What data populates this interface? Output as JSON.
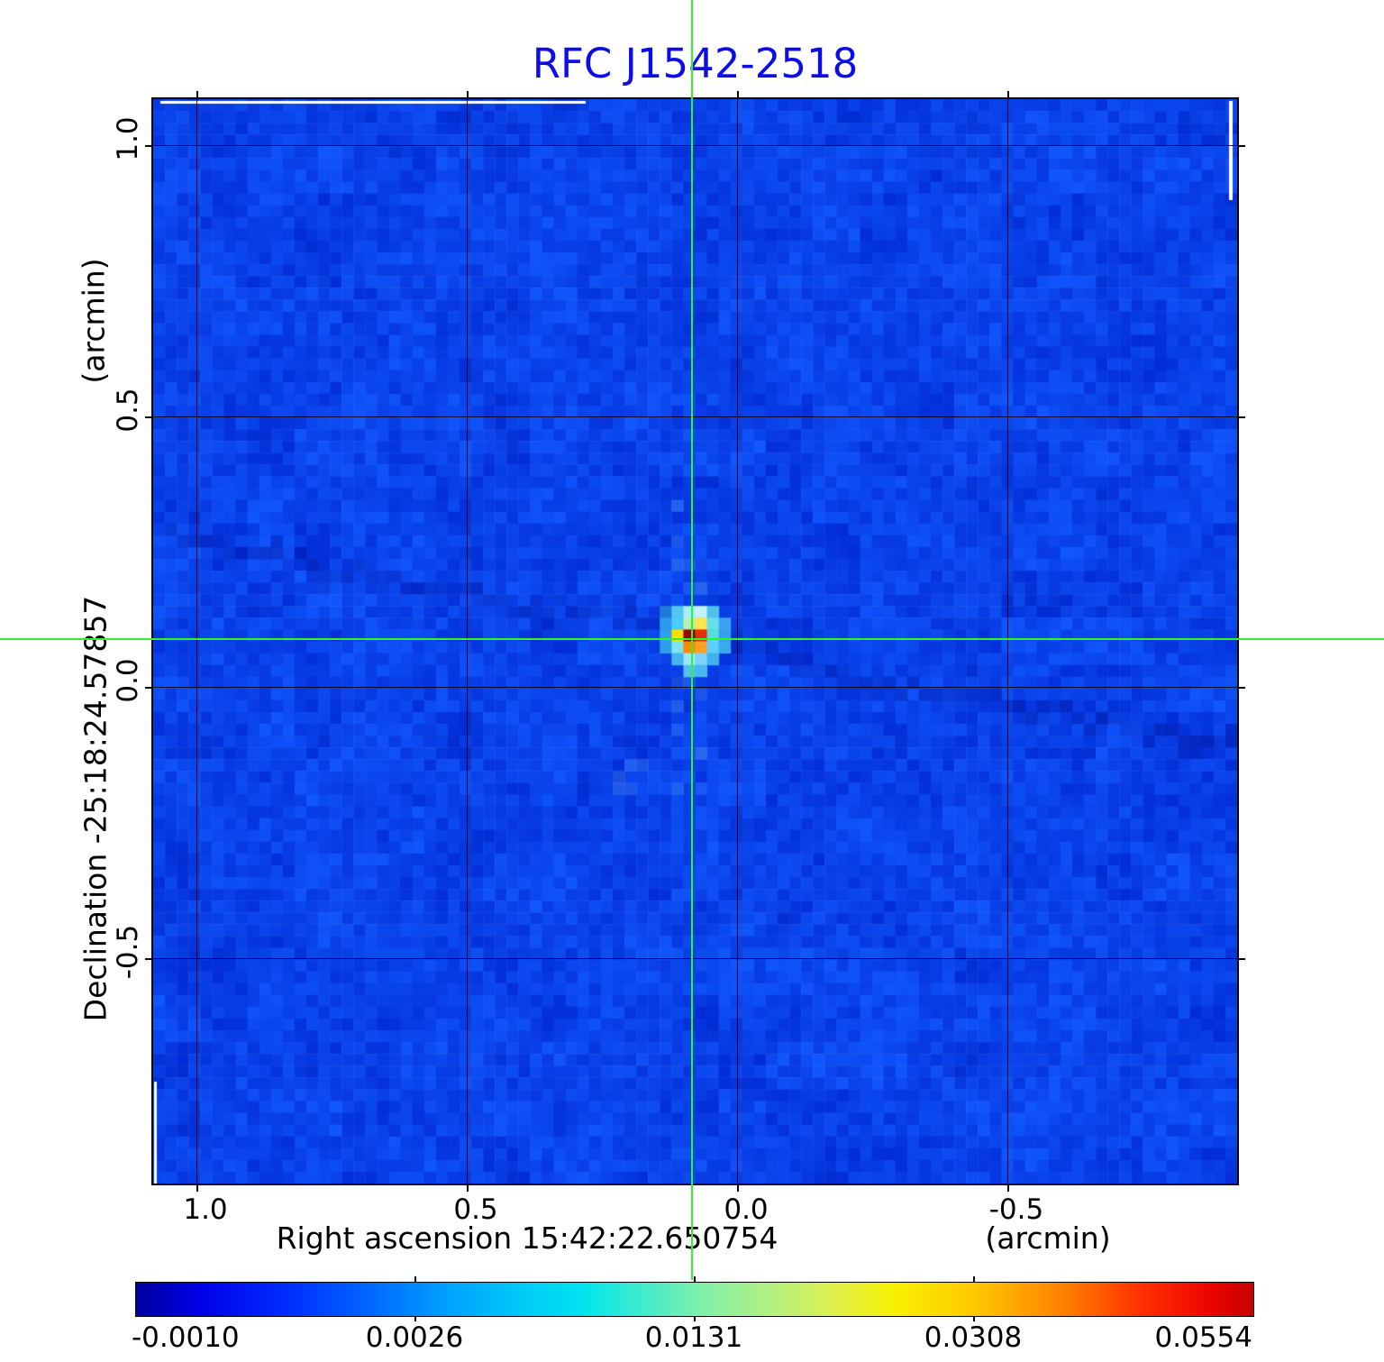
{
  "title": {
    "text": "RFC J1542-2518",
    "color": "#0d0de8"
  },
  "y_axis": {
    "unit_label": "(arcmin)",
    "name_label": "Declination  -25:18:24.57857",
    "tick_labels": [
      "1.0",
      "0.5",
      "0.0",
      "-0.5"
    ]
  },
  "x_axis": {
    "name_label": "Right ascension  15:42:22.650754",
    "unit_label": "(arcmin)",
    "tick_labels": [
      "1.0",
      "0.5",
      "0.0",
      "-0.5"
    ]
  },
  "crosshair": {
    "color": "#2df52d"
  },
  "colorbar": {
    "tick_labels": [
      "-0.0010",
      "0.0026",
      "0.0131",
      "0.0308",
      "0.0554"
    ],
    "gradient": [
      [
        "#0000a0",
        0
      ],
      [
        "#0000e8",
        0.06
      ],
      [
        "#0030ff",
        0.14
      ],
      [
        "#0068ff",
        0.21
      ],
      [
        "#00a2ff",
        0.28
      ],
      [
        "#00ccf8",
        0.35
      ],
      [
        "#00e4ee",
        0.4
      ],
      [
        "#48ecc8",
        0.46
      ],
      [
        "#84f0a8",
        0.51
      ],
      [
        "#b4f080",
        0.57
      ],
      [
        "#e2f048",
        0.63
      ],
      [
        "#f8f000",
        0.68
      ],
      [
        "#ffc800",
        0.75
      ],
      [
        "#ff8000",
        0.83
      ],
      [
        "#ff3000",
        0.9
      ],
      [
        "#ee0500",
        0.96
      ],
      [
        "#c40000",
        1
      ]
    ]
  },
  "chart_data": {
    "type": "heatmap",
    "title": "RFC J1542-2518",
    "xlabel": "Right ascension 15:42:22.650754 (arcmin)",
    "ylabel": "Declination -25:18:24.57857 (arcmin)",
    "x_tick_values": [
      1.0,
      0.5,
      0.0,
      -0.5
    ],
    "y_tick_values": [
      1.0,
      0.5,
      0.0,
      -0.5
    ],
    "xlim": [
      1.08,
      -0.93
    ],
    "ylim": [
      -0.91,
      1.09
    ],
    "grid": true,
    "colorbar_tick_values": [
      -0.001,
      0.0026,
      0.0131,
      0.0308,
      0.0554
    ],
    "value_range": [
      -0.001,
      0.0554
    ],
    "crosshair_position_arcmin": {
      "x": 0.08,
      "y": 0.09
    },
    "peak_source": {
      "x_arcmin": 0.08,
      "y_arcmin": 0.09,
      "approx_peak_value": 0.0554
    },
    "background_color_hex": "#0545ec",
    "source_pixels": [
      [
        -2,
        -2,
        "#1e7ad8"
      ],
      [
        -1,
        -2,
        "#55c6f2"
      ],
      [
        0,
        -2,
        "#a6eeff"
      ],
      [
        1,
        -2,
        "#c2f2ff"
      ],
      [
        2,
        -2,
        "#4fc0ee"
      ],
      [
        -2,
        -1,
        "#2d9aec"
      ],
      [
        -1,
        -1,
        "#49ccff"
      ],
      [
        0,
        -1,
        "#b9f0b0"
      ],
      [
        1,
        -1,
        "#ffe34c"
      ],
      [
        2,
        -1,
        "#66e0e8"
      ],
      [
        3,
        -1,
        "#3aa4f2"
      ],
      [
        -2,
        0,
        "#2f9ff0"
      ],
      [
        -1,
        0,
        "#ffdf00"
      ],
      [
        0,
        0,
        "#9c0000"
      ],
      [
        1,
        0,
        "#e33008"
      ],
      [
        2,
        0,
        "#55e0d8"
      ],
      [
        3,
        0,
        "#389ff0"
      ],
      [
        -2,
        1,
        "#2f9ce8"
      ],
      [
        -1,
        1,
        "#7de4f0"
      ],
      [
        0,
        1,
        "#ff8a00"
      ],
      [
        1,
        1,
        "#ffa028"
      ],
      [
        2,
        1,
        "#59d0ff"
      ],
      [
        3,
        1,
        "#3ca8ee"
      ],
      [
        -1,
        2,
        "#46b4ee"
      ],
      [
        0,
        2,
        "#9ce6ff"
      ],
      [
        1,
        2,
        "#7ad4ff"
      ],
      [
        2,
        2,
        "#42b0ec"
      ],
      [
        0,
        3,
        "#55c0f0"
      ],
      [
        1,
        3,
        "#4ab6ee"
      ]
    ]
  }
}
